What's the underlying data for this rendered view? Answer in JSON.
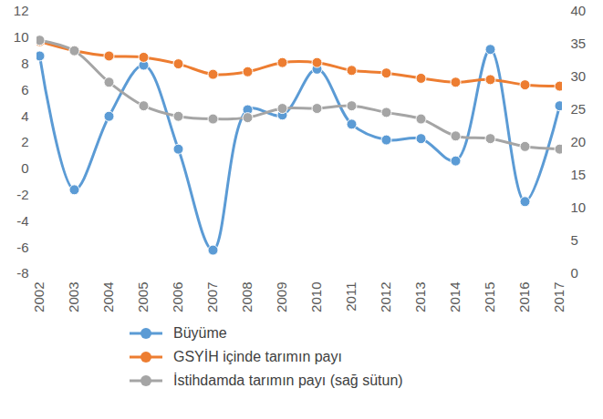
{
  "chart_data": {
    "type": "line",
    "categories": [
      "2002",
      "2003",
      "2004",
      "2005",
      "2006",
      "2007",
      "2008",
      "2009",
      "2010",
      "2011",
      "2012",
      "2013",
      "2014",
      "2015",
      "2016",
      "2017"
    ],
    "series": [
      {
        "name": "Büyüme",
        "color": "#5B9BD5",
        "marker": "circle",
        "line_style": "smooth",
        "values": [
          8.6,
          -1.6,
          4.0,
          7.9,
          1.5,
          -6.2,
          4.5,
          4.1,
          7.6,
          3.4,
          2.2,
          2.3,
          0.6,
          9.1,
          -2.5,
          4.8
        ]
      },
      {
        "name": "GSYİH içinde tarımın payı",
        "color": "#ED7D31",
        "marker": "circle",
        "line_style": "smooth",
        "values": [
          9.7,
          9.0,
          8.6,
          8.5,
          8.0,
          7.2,
          7.4,
          8.1,
          8.1,
          7.5,
          7.3,
          6.9,
          6.6,
          6.8,
          6.4,
          6.3
        ]
      },
      {
        "name": "İstihdamda tarımın payı (sağ sütun)",
        "color": "#A5A5A5",
        "marker": "circle",
        "line_style": "smooth",
        "axis": "y2",
        "values": [
          35.6,
          34.0,
          29.2,
          25.6,
          24.0,
          23.6,
          23.8,
          25.2,
          25.2,
          25.6,
          24.6,
          23.6,
          21.0,
          20.6,
          19.4,
          19.0
        ]
      }
    ],
    "ylim": [
      -8,
      12
    ],
    "yticks": [
      -8,
      -6,
      -4,
      -2,
      0,
      2,
      4,
      6,
      8,
      10,
      12
    ],
    "y2lim": [
      0,
      40
    ],
    "y2ticks": [
      0,
      5,
      10,
      15,
      20,
      25,
      30,
      35,
      40
    ],
    "grid": false,
    "legend": "bottom"
  }
}
